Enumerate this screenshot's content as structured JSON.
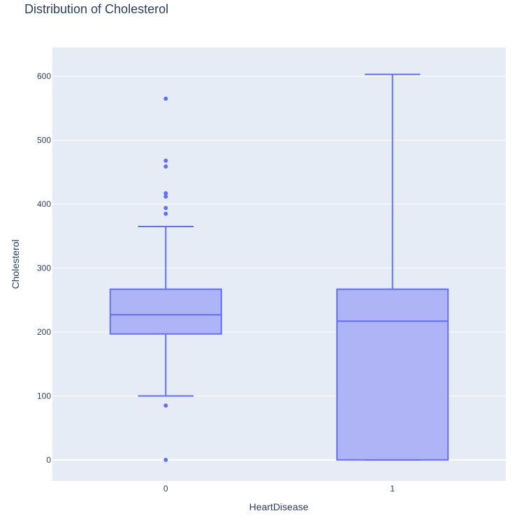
{
  "chart_data": {
    "type": "box",
    "title": "Distribution of Cholesterol",
    "xlabel": "HeartDisease",
    "ylabel": "Cholesterol",
    "categories": [
      "0",
      "1"
    ],
    "yticks": [
      0,
      100,
      200,
      300,
      400,
      500,
      600
    ],
    "ylim": [
      -33,
      645
    ],
    "grid": true,
    "color": "#636efa",
    "fill": "#aeb4f5",
    "boxes": [
      {
        "category": "0",
        "lower_fence": 100,
        "q1": 197,
        "median": 227,
        "q3": 267,
        "upper_fence": 365,
        "outliers": [
          565,
          468,
          459,
          417,
          412,
          394,
          385,
          85,
          0
        ]
      },
      {
        "category": "1",
        "lower_fence": 0,
        "q1": 0,
        "median": 217,
        "q3": 267,
        "upper_fence": 603,
        "outliers": []
      }
    ]
  }
}
